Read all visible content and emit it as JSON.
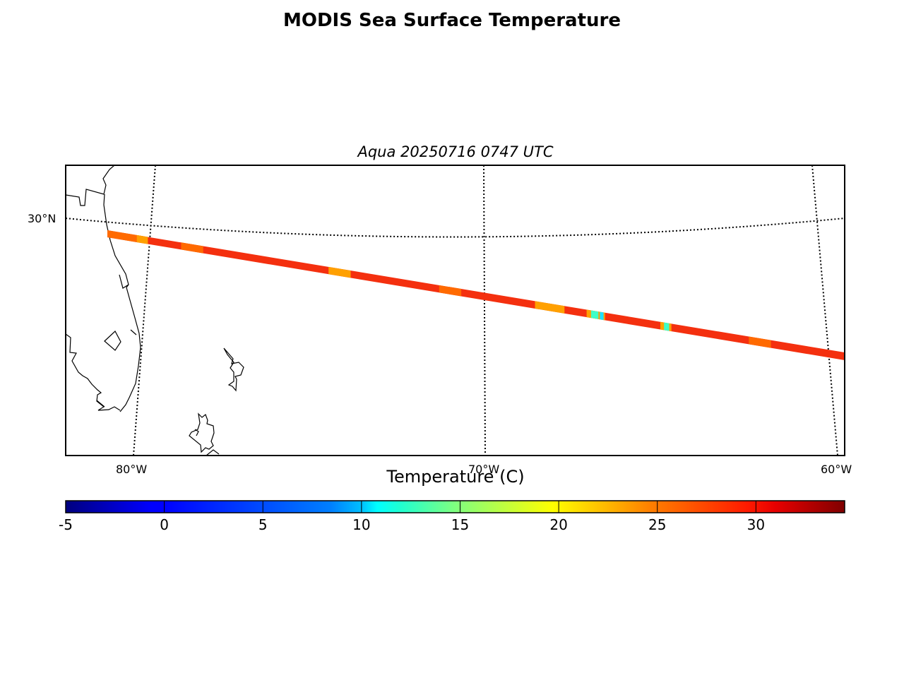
{
  "title": "MODIS Sea Surface Temperature",
  "subtitle": "Aqua 20250716 0747 UTC",
  "map": {
    "lat_labels": [
      "30°N"
    ],
    "lon_labels": [
      "80°W",
      "70°W",
      "60°W"
    ],
    "swath_colors": {
      "main": "#f4300f",
      "warm": "#ff6a00",
      "mid": "#ffa000",
      "cool": "#3dffc8",
      "cyan": "#1ee0ff"
    }
  },
  "colorbar": {
    "label": "Temperature (C)",
    "ticks": [
      "-5",
      "0",
      "5",
      "10",
      "15",
      "20",
      "25",
      "30"
    ],
    "tick_values": [
      -5,
      0,
      5,
      10,
      15,
      20,
      25,
      30
    ],
    "vmin": -5,
    "vmax": 34.5,
    "colormap": "jet"
  }
}
